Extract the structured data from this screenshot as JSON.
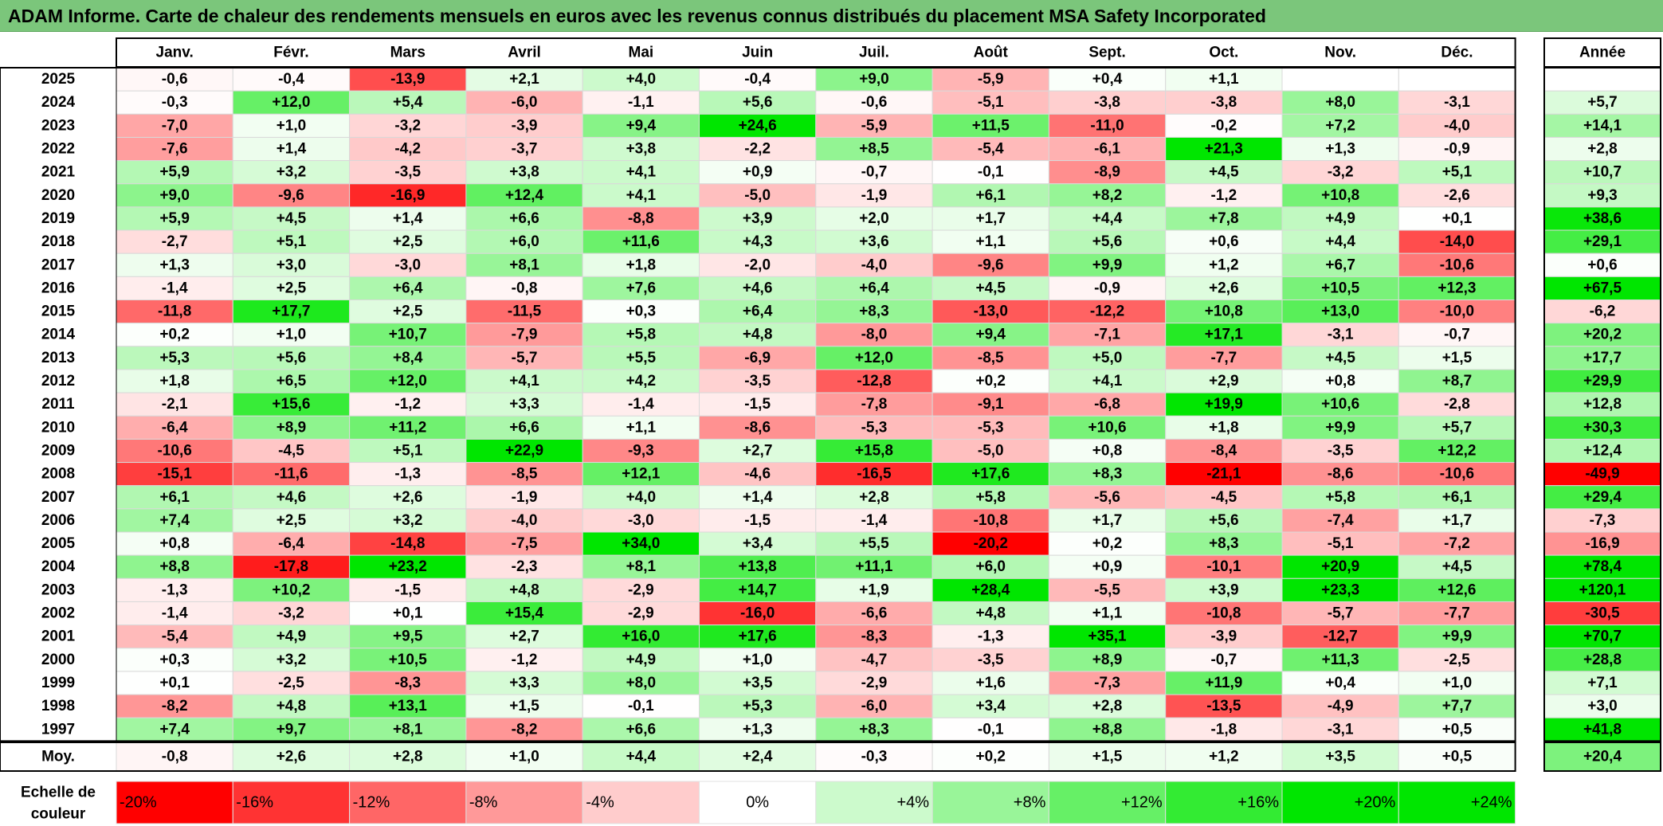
{
  "title": "ADAM Informe. Carte de chaleur des rendements mensuels en euros avec les revenus connus distribués du placement MSA Safety Incorporated",
  "chart_data": {
    "type": "heatmap",
    "title": "ADAM Informe. Carte de chaleur des rendements mensuels en euros avec les revenus connus distribués du placement MSA Safety Incorporated",
    "months": [
      "Janv.",
      "Févr.",
      "Mars",
      "Avril",
      "Mai",
      "Juin",
      "Juil.",
      "Août",
      "Sept.",
      "Oct.",
      "Nov.",
      "Déc."
    ],
    "annual_label": "Année",
    "rows": [
      {
        "year": "2025",
        "values": [
          "-0,6",
          "-0,4",
          "-13,9",
          "+2,1",
          "+4,0",
          "-0,4",
          "+9,0",
          "-5,9",
          "+0,4",
          "+1,1",
          "",
          ""
        ],
        "annual": ""
      },
      {
        "year": "2024",
        "values": [
          "-0,3",
          "+12,0",
          "+5,4",
          "-6,0",
          "-1,1",
          "+5,6",
          "-0,6",
          "-5,1",
          "-3,8",
          "-3,8",
          "+8,0",
          "-3,1"
        ],
        "annual": "+5,7"
      },
      {
        "year": "2023",
        "values": [
          "-7,0",
          "+1,0",
          "-3,2",
          "-3,9",
          "+9,4",
          "+24,6",
          "-5,9",
          "+11,5",
          "-11,0",
          "-0,2",
          "+7,2",
          "-4,0"
        ],
        "annual": "+14,1"
      },
      {
        "year": "2022",
        "values": [
          "-7,6",
          "+1,4",
          "-4,2",
          "-3,7",
          "+3,8",
          "-2,2",
          "+8,5",
          "-5,4",
          "-6,1",
          "+21,3",
          "+1,3",
          "-0,9"
        ],
        "annual": "+2,8"
      },
      {
        "year": "2021",
        "values": [
          "+5,9",
          "+3,2",
          "-3,5",
          "+3,8",
          "+4,1",
          "+0,9",
          "-0,7",
          "-0,1",
          "-8,9",
          "+4,5",
          "-3,2",
          "+5,1"
        ],
        "annual": "+10,7"
      },
      {
        "year": "2020",
        "values": [
          "+9,0",
          "-9,6",
          "-16,9",
          "+12,4",
          "+4,1",
          "-5,0",
          "-1,9",
          "+6,1",
          "+8,2",
          "-1,2",
          "+10,8",
          "-2,6"
        ],
        "annual": "+9,3"
      },
      {
        "year": "2019",
        "values": [
          "+5,9",
          "+4,5",
          "+1,4",
          "+6,6",
          "-8,8",
          "+3,9",
          "+2,0",
          "+1,7",
          "+4,4",
          "+7,8",
          "+4,9",
          "+0,1"
        ],
        "annual": "+38,6"
      },
      {
        "year": "2018",
        "values": [
          "-2,7",
          "+5,1",
          "+2,5",
          "+6,0",
          "+11,6",
          "+4,3",
          "+3,6",
          "+1,1",
          "+5,6",
          "+0,6",
          "+4,4",
          "-14,0"
        ],
        "annual": "+29,1"
      },
      {
        "year": "2017",
        "values": [
          "+1,3",
          "+3,0",
          "-3,0",
          "+8,1",
          "+1,8",
          "-2,0",
          "-4,0",
          "-9,6",
          "+9,9",
          "+1,2",
          "+6,7",
          "-10,6"
        ],
        "annual": "+0,6"
      },
      {
        "year": "2016",
        "values": [
          "-1,4",
          "+2,5",
          "+6,4",
          "-0,8",
          "+7,6",
          "+4,6",
          "+6,4",
          "+4,5",
          "-0,9",
          "+2,6",
          "+10,5",
          "+12,3"
        ],
        "annual": "+67,5"
      },
      {
        "year": "2015",
        "values": [
          "-11,8",
          "+17,7",
          "+2,5",
          "-11,5",
          "+0,3",
          "+6,4",
          "+8,3",
          "-13,0",
          "-12,2",
          "+10,8",
          "+13,0",
          "-10,0"
        ],
        "annual": "-6,2"
      },
      {
        "year": "2014",
        "values": [
          "+0,2",
          "+1,0",
          "+10,7",
          "-7,9",
          "+5,8",
          "+4,8",
          "-8,0",
          "+9,4",
          "-7,1",
          "+17,1",
          "-3,1",
          "-0,7"
        ],
        "annual": "+20,2"
      },
      {
        "year": "2013",
        "values": [
          "+5,3",
          "+5,6",
          "+8,4",
          "-5,7",
          "+5,5",
          "-6,9",
          "+12,0",
          "-8,5",
          "+5,0",
          "-7,7",
          "+4,5",
          "+1,5"
        ],
        "annual": "+17,7"
      },
      {
        "year": "2012",
        "values": [
          "+1,8",
          "+6,5",
          "+12,0",
          "+4,1",
          "+4,2",
          "-3,5",
          "-12,8",
          "+0,2",
          "+4,1",
          "+2,9",
          "+0,8",
          "+8,7"
        ],
        "annual": "+29,9"
      },
      {
        "year": "2011",
        "values": [
          "-2,1",
          "+15,6",
          "-1,2",
          "+3,3",
          "-1,4",
          "-1,5",
          "-7,8",
          "-9,1",
          "-6,8",
          "+19,9",
          "+10,6",
          "-2,8"
        ],
        "annual": "+12,8"
      },
      {
        "year": "2010",
        "values": [
          "-6,4",
          "+8,9",
          "+11,2",
          "+6,6",
          "+1,1",
          "-8,6",
          "-5,3",
          "-5,3",
          "+10,6",
          "+1,8",
          "+9,9",
          "+5,7"
        ],
        "annual": "+30,3"
      },
      {
        "year": "2009",
        "values": [
          "-10,6",
          "-4,5",
          "+5,1",
          "+22,9",
          "-9,3",
          "+2,7",
          "+15,8",
          "-5,0",
          "+0,8",
          "-8,4",
          "-3,5",
          "+12,2"
        ],
        "annual": "+12,4"
      },
      {
        "year": "2008",
        "values": [
          "-15,1",
          "-11,6",
          "-1,3",
          "-8,5",
          "+12,1",
          "-4,6",
          "-16,5",
          "+17,6",
          "+8,3",
          "-21,1",
          "-8,6",
          "-10,6"
        ],
        "annual": "-49,9"
      },
      {
        "year": "2007",
        "values": [
          "+6,1",
          "+4,6",
          "+2,6",
          "-1,9",
          "+4,0",
          "+1,4",
          "+2,8",
          "+5,8",
          "-5,6",
          "-4,5",
          "+5,8",
          "+6,1"
        ],
        "annual": "+29,4"
      },
      {
        "year": "2006",
        "values": [
          "+7,4",
          "+2,5",
          "+3,2",
          "-4,0",
          "-3,0",
          "-1,5",
          "-1,4",
          "-10,8",
          "+1,7",
          "+5,6",
          "-7,4",
          "+1,7"
        ],
        "annual": "-7,3"
      },
      {
        "year": "2005",
        "values": [
          "+0,8",
          "-6,4",
          "-14,8",
          "-7,5",
          "+34,0",
          "+3,4",
          "+5,5",
          "-20,2",
          "+0,2",
          "+8,3",
          "-5,1",
          "-7,2"
        ],
        "annual": "-16,9"
      },
      {
        "year": "2004",
        "values": [
          "+8,8",
          "-17,8",
          "+23,2",
          "-2,3",
          "+8,1",
          "+13,8",
          "+11,1",
          "+6,0",
          "+0,9",
          "-10,1",
          "+20,9",
          "+4,5"
        ],
        "annual": "+78,4"
      },
      {
        "year": "2003",
        "values": [
          "-1,3",
          "+10,2",
          "-1,5",
          "+4,8",
          "-2,9",
          "+14,7",
          "+1,9",
          "+28,4",
          "-5,5",
          "+3,9",
          "+23,3",
          "+12,6"
        ],
        "annual": "+120,1"
      },
      {
        "year": "2002",
        "values": [
          "-1,4",
          "-3,2",
          "+0,1",
          "+15,4",
          "-2,9",
          "-16,0",
          "-6,6",
          "+4,8",
          "+1,1",
          "-10,8",
          "-5,7",
          "-7,7"
        ],
        "annual": "-30,5"
      },
      {
        "year": "2001",
        "values": [
          "-5,4",
          "+4,9",
          "+9,5",
          "+2,7",
          "+16,0",
          "+17,6",
          "-8,3",
          "-1,3",
          "+35,1",
          "-3,9",
          "-12,7",
          "+9,9"
        ],
        "annual": "+70,7"
      },
      {
        "year": "2000",
        "values": [
          "+0,3",
          "+3,2",
          "+10,5",
          "-1,2",
          "+4,9",
          "+1,0",
          "-4,7",
          "-3,5",
          "+8,9",
          "-0,7",
          "+11,3",
          "-2,5"
        ],
        "annual": "+28,8"
      },
      {
        "year": "1999",
        "values": [
          "+0,1",
          "-2,5",
          "-8,3",
          "+3,3",
          "+8,0",
          "+3,5",
          "-2,9",
          "+1,6",
          "-7,3",
          "+11,9",
          "+0,4",
          "+1,0"
        ],
        "annual": "+7,1"
      },
      {
        "year": "1998",
        "values": [
          "-8,2",
          "+4,8",
          "+13,1",
          "+1,5",
          "-0,1",
          "+5,3",
          "-6,0",
          "+3,4",
          "+2,8",
          "-13,5",
          "-4,9",
          "+7,7"
        ],
        "annual": "+3,0"
      },
      {
        "year": "1997",
        "values": [
          "+7,4",
          "+9,7",
          "+8,1",
          "-8,2",
          "+6,6",
          "+1,3",
          "+8,3",
          "-0,1",
          "+8,8",
          "-1,8",
          "-3,1",
          "+0,5"
        ],
        "annual": "+41,8"
      }
    ],
    "average": {
      "label": "Moy.",
      "values": [
        "-0,8",
        "+2,6",
        "+2,8",
        "+1,0",
        "+4,4",
        "+2,4",
        "-0,3",
        "+0,2",
        "+1,5",
        "+1,2",
        "+3,5",
        "+0,5"
      ],
      "annual": "+20,4"
    },
    "legend": {
      "label_line1": "Echelle de",
      "label_line2": "couleur",
      "labels": [
        "-20%",
        "-16%",
        "-12%",
        "-8%",
        "-4%",
        "0%",
        "+4%",
        "+8%",
        "+12%",
        "+16%",
        "+20%",
        "+24%"
      ],
      "values": [
        -20,
        -16,
        -12,
        -8,
        -4,
        0,
        4,
        8,
        12,
        16,
        20,
        24
      ]
    },
    "colors": {
      "negative_max": "#ff0000",
      "neutral": "#ffffff",
      "positive_max": "#00e600",
      "title_bar": "#7bc67b"
    }
  }
}
